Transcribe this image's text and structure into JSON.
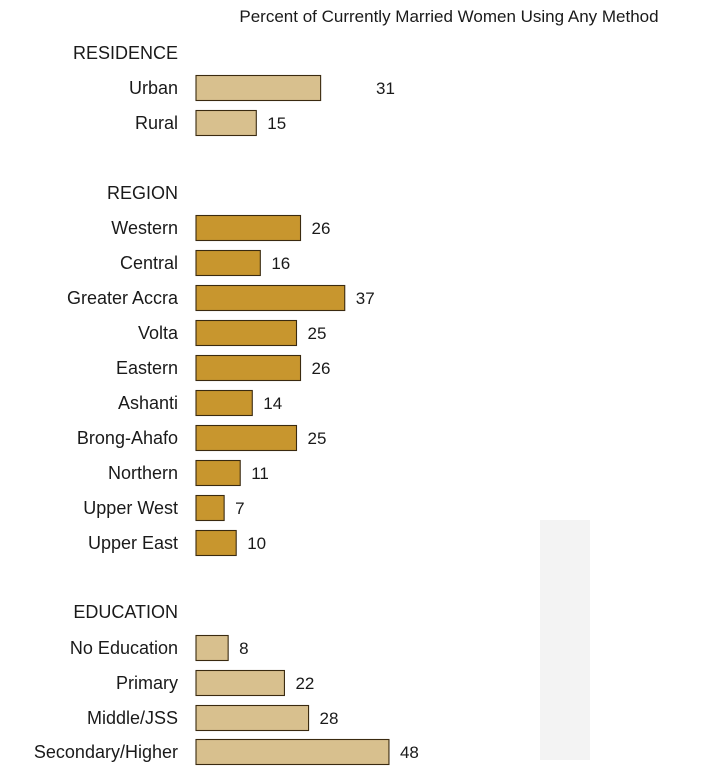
{
  "chart_data": {
    "type": "bar",
    "orientation": "horizontal",
    "title": "Percent of Currently Married Women Using Any Method",
    "xlim": [
      0,
      50
    ],
    "grid": false,
    "legend": "none",
    "colors": {
      "light": "#d8c08e",
      "dark": "#c8962e",
      "outline": "#3a2a10"
    },
    "groups": [
      {
        "name": "RESIDENCE",
        "color": "light",
        "categories": [
          "Urban",
          "Rural"
        ],
        "values": [
          31,
          15
        ]
      },
      {
        "name": "REGION",
        "color": "dark",
        "categories": [
          "Western",
          "Central",
          "Greater Accra",
          "Volta",
          "Eastern",
          "Ashanti",
          "Brong-Ahafo",
          "Northern",
          "Upper West",
          "Upper East"
        ],
        "values": [
          26,
          16,
          37,
          25,
          26,
          14,
          25,
          11,
          7,
          10
        ]
      },
      {
        "name": "EDUCATION",
        "color": "light",
        "categories": [
          "No Education",
          "Primary",
          "Middle/JSS",
          "Secondary/Higher"
        ],
        "values": [
          8,
          22,
          28,
          48
        ]
      }
    ]
  }
}
